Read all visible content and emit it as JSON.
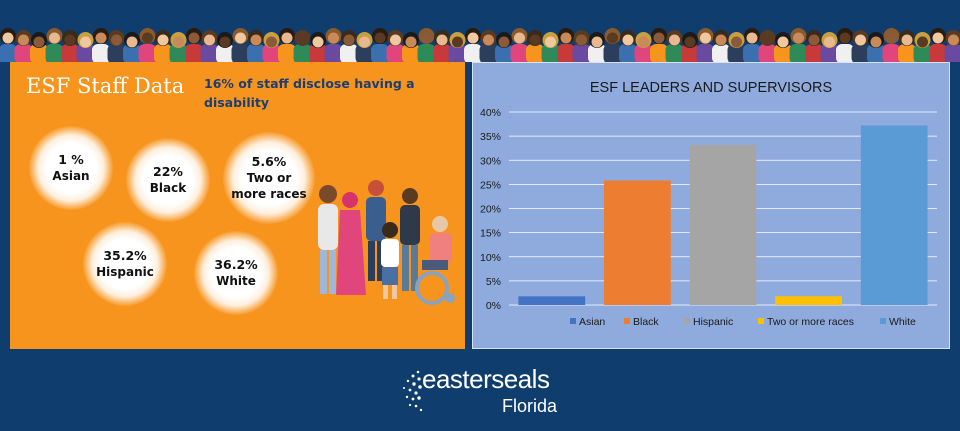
{
  "left_panel": {
    "title": "ESF Staff Data",
    "note": "16% of staff disclose having a disability",
    "stats": [
      {
        "value": "1 %",
        "label": "Asian"
      },
      {
        "value": "22%",
        "label": "Black"
      },
      {
        "value": "5.6%",
        "label": "Two or more races"
      },
      {
        "value": "35.2%",
        "label": "Hispanic"
      },
      {
        "value": "36.2%",
        "label": "White"
      }
    ]
  },
  "chart_data": {
    "type": "bar",
    "title": "ESF LEADERS AND SUPERVISORS",
    "xlabel": "",
    "ylabel": "",
    "ylim": [
      0,
      40
    ],
    "yticks": [
      "0%",
      "5%",
      "10%",
      "15%",
      "20%",
      "25%",
      "30%",
      "35%",
      "40%"
    ],
    "grid": true,
    "legend": "bottom",
    "categories": [
      "Asian",
      "Black",
      "Hispanic",
      "Two or more races",
      "White"
    ],
    "values": [
      1.8,
      25.8,
      33.2,
      1.8,
      37.2
    ],
    "colors": [
      "#4472c4",
      "#ed7d31",
      "#a5a5a5",
      "#ffc000",
      "#5b9bd5"
    ]
  },
  "logo": {
    "word": "easterseals",
    "sub": "Florida"
  },
  "colors": {
    "background": "#0f3d6e",
    "left_panel": "#f7941d",
    "right_panel": "#8fabde",
    "note": "#1b3f73"
  }
}
